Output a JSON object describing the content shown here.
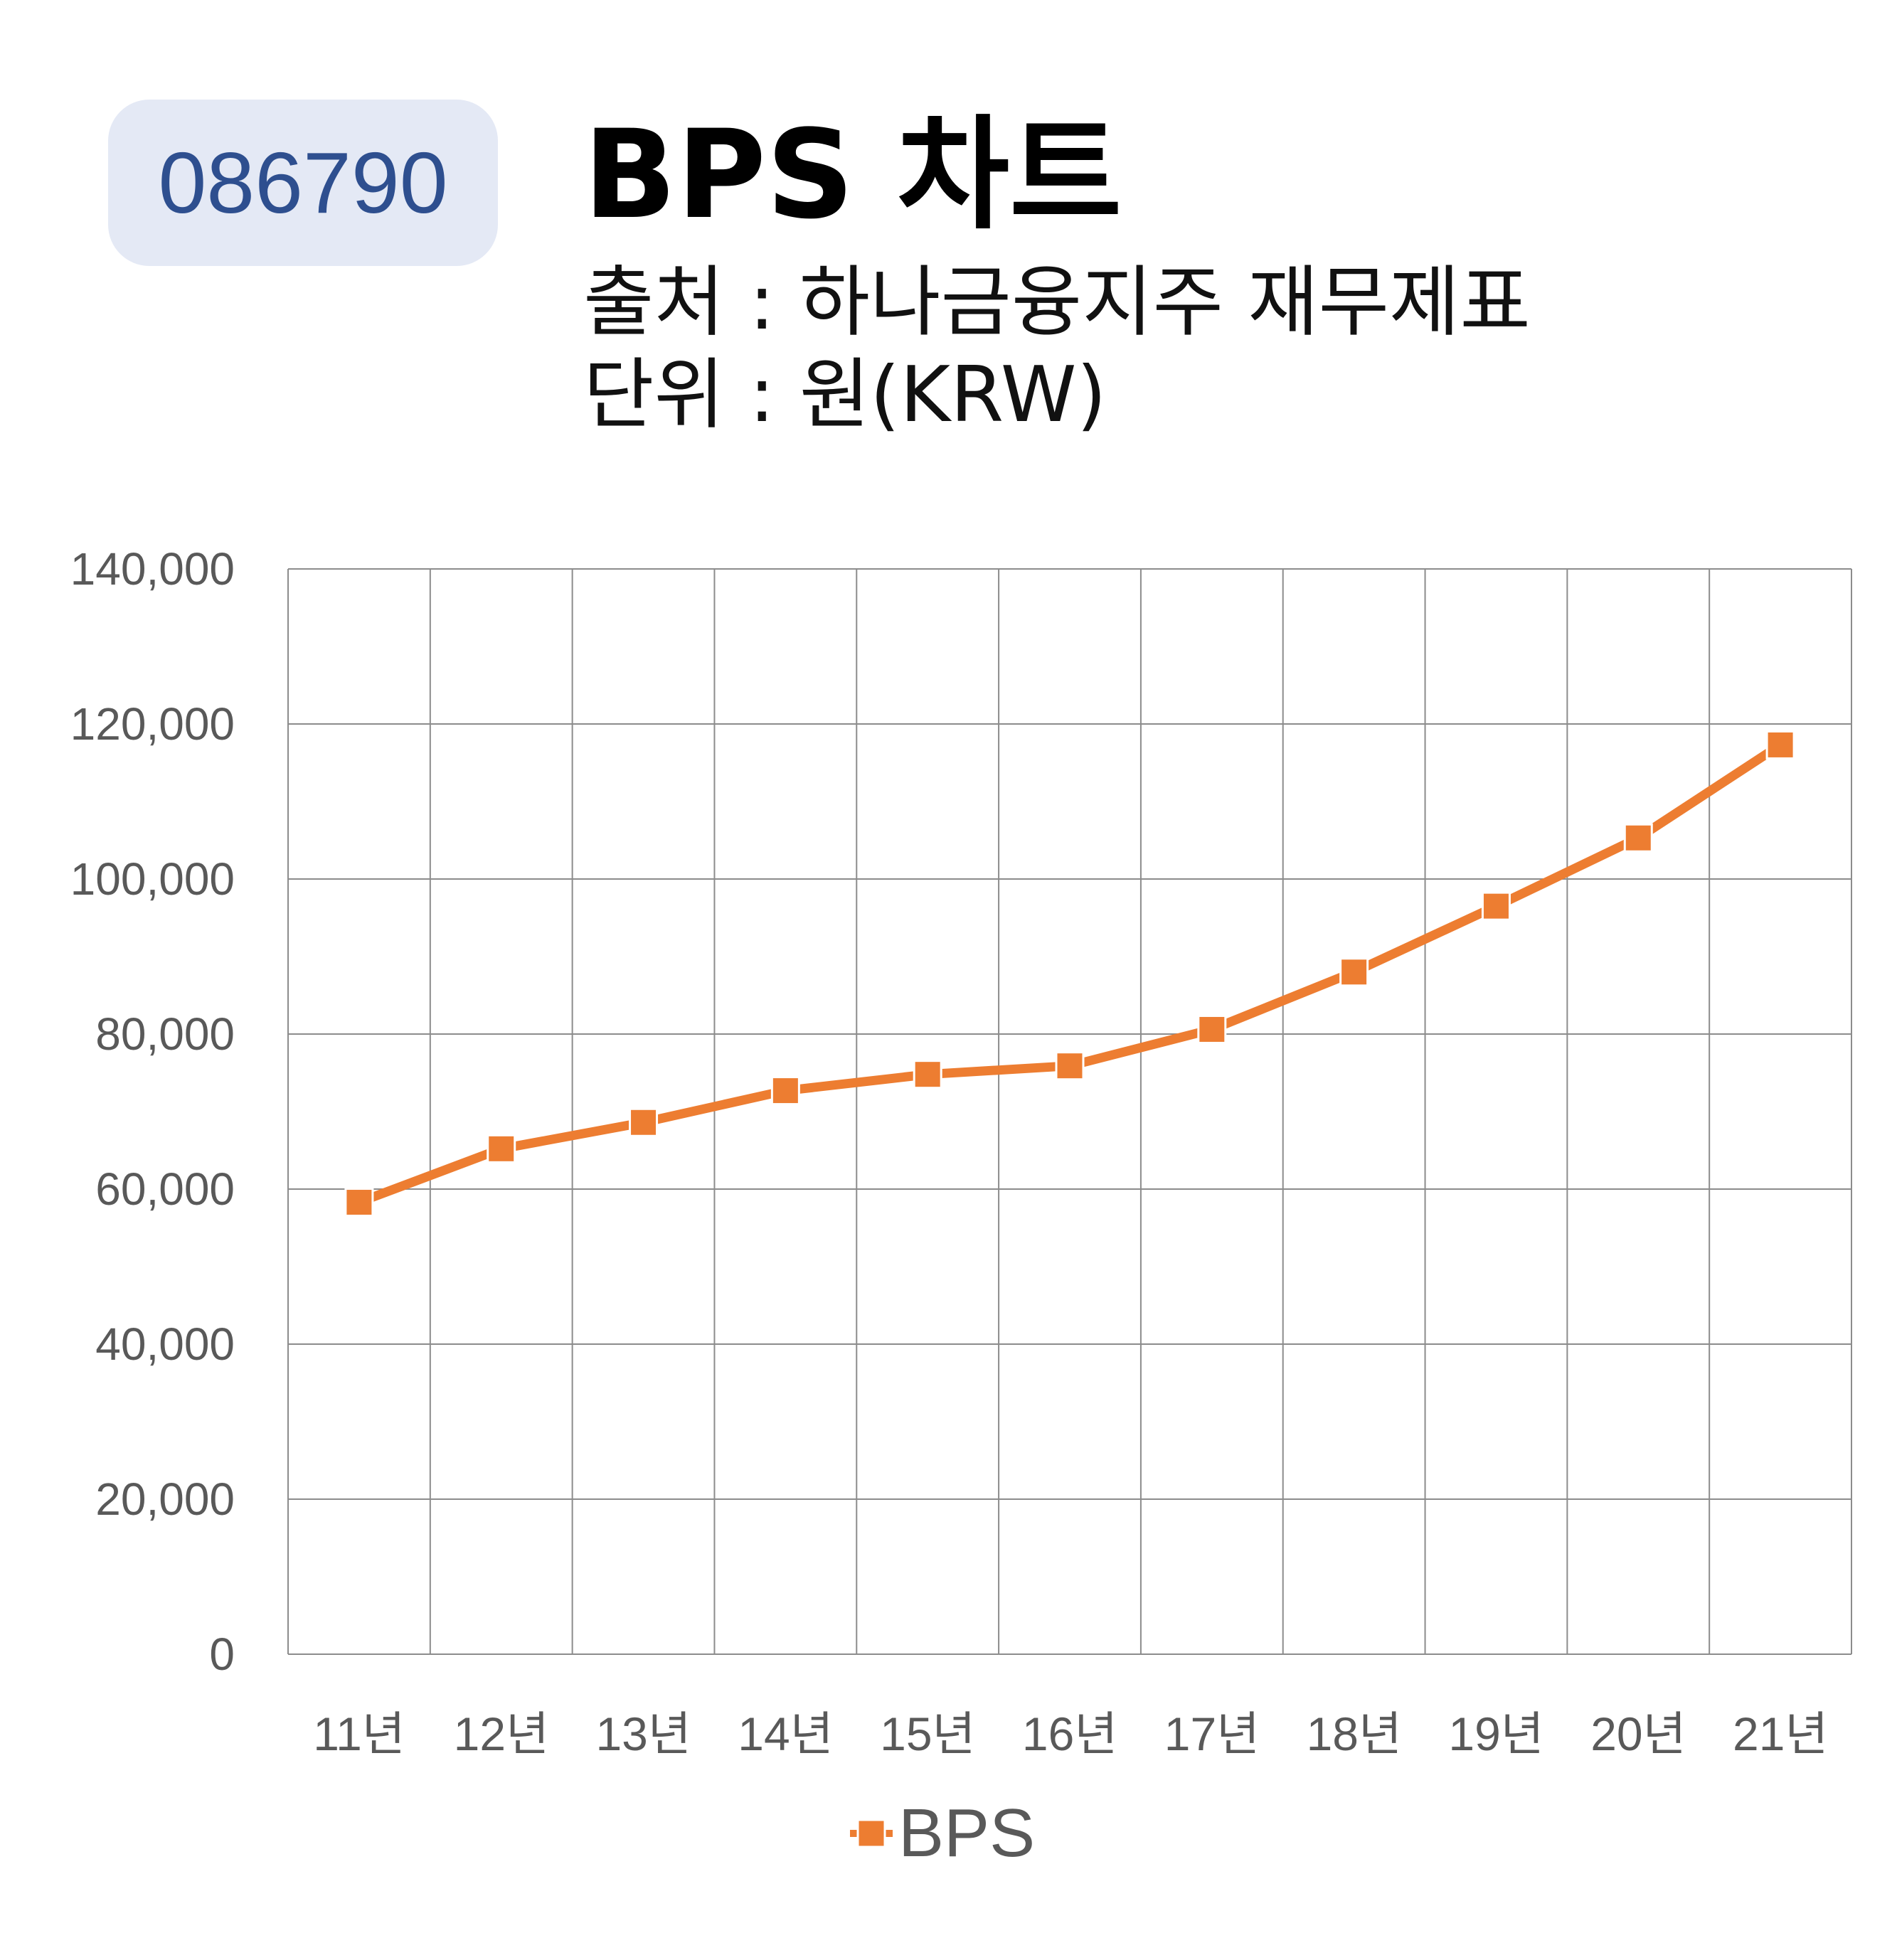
{
  "header": {
    "code": "086790",
    "title": "BPS 차트",
    "source": "출처 : 하나금융지주 재무제표",
    "unit": "단위 : 원(KRW)"
  },
  "colors": {
    "badge_bg": "#e4e9f5",
    "badge_text": "#2e4f8f",
    "series": "#ed7d31",
    "grid": "#8c8c8c"
  },
  "chart_data": {
    "type": "line",
    "categories": [
      "11년",
      "12년",
      "13년",
      "14년",
      "15년",
      "16년",
      "17년",
      "18년",
      "19년",
      "20년",
      "21년"
    ],
    "series": [
      {
        "name": "BPS",
        "values": [
          58300,
          65200,
          68600,
          72700,
          74800,
          75900,
          80600,
          88000,
          96500,
          105300,
          117300
        ]
      }
    ],
    "ylim": [
      0,
      140000
    ],
    "yticks": [
      0,
      20000,
      40000,
      60000,
      80000,
      100000,
      120000,
      140000
    ],
    "ytick_labels": [
      "0",
      "20,000",
      "40,000",
      "60,000",
      "80,000",
      "100,000",
      "120,000",
      "140,000"
    ],
    "grid": true,
    "marker": "square",
    "legend_position": "bottom"
  }
}
